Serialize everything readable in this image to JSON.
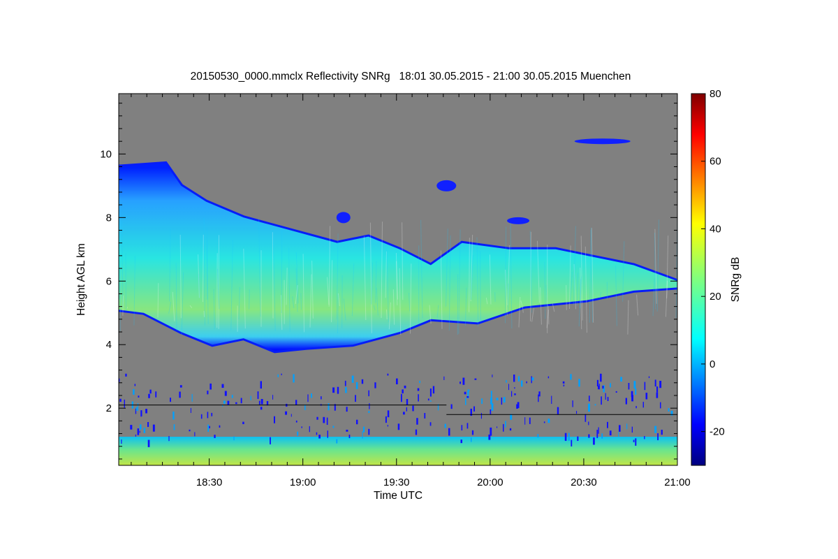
{
  "chart_data": {
    "type": "heatmap",
    "title": "20150530_0000.mmclx Reflectivity SNRg   18:01 30.05.2015 - 21:00 30.05.2015 Muenchen",
    "xlabel": "Time UTC",
    "ylabel": "Height AGL km",
    "colorbar_label": "SNRg dB",
    "x_range": [
      "18:01",
      "21:00"
    ],
    "y_range": [
      0.2,
      11.9
    ],
    "x_tick_labels": [
      "18:30",
      "19:00",
      "19:30",
      "20:00",
      "20:30",
      "21:00"
    ],
    "x_tick_values_min": [
      29,
      59,
      89,
      119,
      149,
      179
    ],
    "y_ticks": [
      2,
      4,
      6,
      8,
      10
    ],
    "colorbar_range": [
      -30,
      80
    ],
    "colorbar_ticks": [
      -20,
      0,
      20,
      40,
      60,
      80
    ],
    "colormap": "jet",
    "background_color": "#808080",
    "cloud_top_km": [
      [
        0,
        9.6
      ],
      [
        15,
        9.7
      ],
      [
        20,
        9.0
      ],
      [
        28,
        8.5
      ],
      [
        40,
        8.0
      ],
      [
        55,
        7.6
      ],
      [
        70,
        7.2
      ],
      [
        80,
        7.4
      ],
      [
        90,
        7.0
      ],
      [
        100,
        6.5
      ],
      [
        110,
        7.2
      ],
      [
        125,
        7.0
      ],
      [
        140,
        7.0
      ],
      [
        150,
        6.8
      ],
      [
        165,
        6.5
      ],
      [
        179,
        6.0
      ]
    ],
    "cloud_base_km": [
      [
        0,
        5.1
      ],
      [
        8,
        5.0
      ],
      [
        20,
        4.4
      ],
      [
        30,
        4.0
      ],
      [
        40,
        4.2
      ],
      [
        50,
        3.8
      ],
      [
        60,
        3.9
      ],
      [
        75,
        4.0
      ],
      [
        90,
        4.4
      ],
      [
        100,
        4.8
      ],
      [
        115,
        4.7
      ],
      [
        130,
        5.2
      ],
      [
        150,
        5.4
      ],
      [
        165,
        5.7
      ],
      [
        179,
        5.8
      ]
    ]
  }
}
